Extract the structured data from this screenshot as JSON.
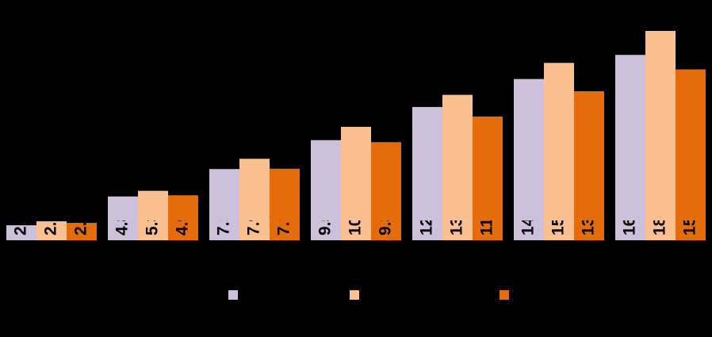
{
  "chart_data": {
    "type": "bar",
    "categories": [
      null,
      null,
      null,
      null,
      null,
      null,
      null
    ],
    "series": [
      {
        "color": "#ccc0da",
        "values": [
          2.45,
          4.85,
          7.136,
          9.545,
          12.307,
          14.639,
          16.648
        ]
      },
      {
        "color": "#fac090",
        "values": [
          2.78,
          5.32,
          7.991,
          10.655,
          13.319,
          15.982,
          18.646
        ]
      },
      {
        "color": "#e46c0a",
        "values": [
          2.65,
          4.95,
          7.163,
          9.378,
          11.515,
          13.621,
          15.442
        ]
      }
    ],
    "ylim": [
      1.2,
      20
    ]
  }
}
